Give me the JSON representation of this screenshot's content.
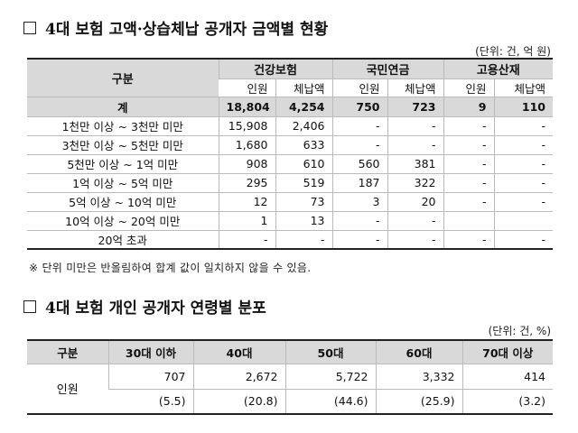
{
  "section1": {
    "title": "4대 보험 고액·상습체납 공개자 금액별 현황",
    "unit": "(단위: 건, 억 원)",
    "header": {
      "gubun": "구분",
      "groups": [
        "건강보험",
        "국민연금",
        "고용산재"
      ],
      "subs": [
        "인원",
        "체납액",
        "인원",
        "체납액",
        "인원",
        "체납액"
      ]
    },
    "total": {
      "label": "계",
      "values": [
        "18,804",
        "4,254",
        "750",
        "723",
        "9",
        "110"
      ]
    },
    "rows": [
      {
        "label": "1천만 이상 ~ 3천만 미만",
        "values": [
          "15,908",
          "2,406",
          "-",
          "-",
          "-",
          "-"
        ]
      },
      {
        "label": "3천만 이상 ~ 5천만 미만",
        "values": [
          "1,680",
          "633",
          "-",
          "-",
          "-",
          "-"
        ]
      },
      {
        "label": "5천만 이상 ~ 1억 미만",
        "values": [
          "908",
          "610",
          "560",
          "381",
          "-",
          "-"
        ]
      },
      {
        "label": "1억 이상 ~ 5억 미만",
        "values": [
          "295",
          "519",
          "187",
          "322",
          "-",
          "-"
        ]
      },
      {
        "label": "5억 이상 ~ 10억 미만",
        "values": [
          "12",
          "73",
          "3",
          "20",
          "-",
          "-"
        ]
      },
      {
        "label": "10억 이상 ~ 20억 미만",
        "values": [
          "1",
          "13",
          "-",
          "-",
          "",
          ""
        ]
      },
      {
        "label": "20억 초과",
        "values": [
          "-",
          "-",
          "-",
          "-",
          "-",
          "-"
        ]
      }
    ],
    "note": "※ 단위 미만은 반올림하여 합계 값이 일치하지 않을 수 있음."
  },
  "section2": {
    "title": "4대 보험 개인 공개자 연령별 분포",
    "unit": "(단위: 건, %)",
    "header": [
      "구분",
      "30대 이하",
      "40대",
      "50대",
      "60대",
      "70대 이상"
    ],
    "row_label": "인원",
    "counts": [
      "707",
      "2,672",
      "5,722",
      "3,332",
      "414"
    ],
    "percents": [
      "(5.5)",
      "(20.8)",
      "(44.6)",
      "(25.9)",
      "(3.2)"
    ]
  }
}
